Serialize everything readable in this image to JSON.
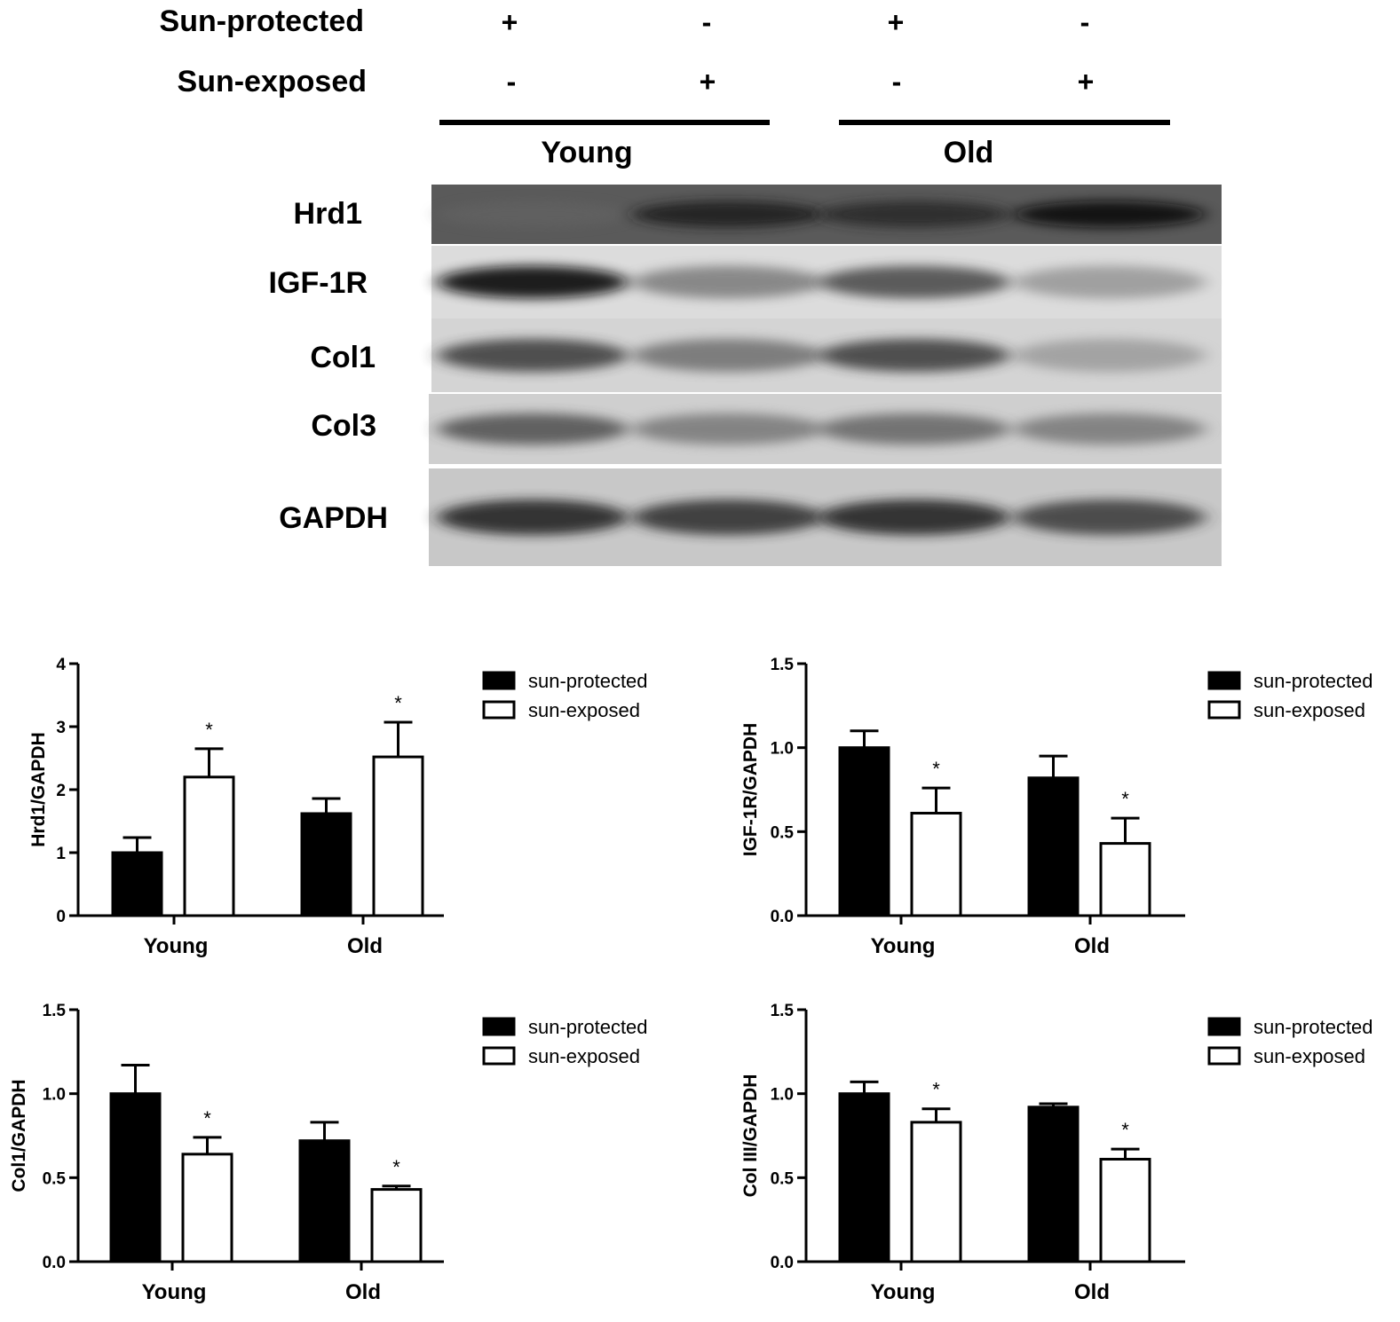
{
  "blot": {
    "conditions": [
      {
        "label": "Sun-protected",
        "signs": [
          "+",
          "-",
          "+",
          "-"
        ]
      },
      {
        "label": "Sun-exposed",
        "signs": [
          "-",
          "+",
          "-",
          "+"
        ]
      }
    ],
    "groups": [
      "Young",
      "Old"
    ],
    "bands": [
      {
        "label": "Hrd1",
        "intensity": [
          0.35,
          0.85,
          0.8,
          0.95
        ],
        "background": "#5a5a5a"
      },
      {
        "label": "IGF-1R",
        "intensity": [
          0.95,
          0.45,
          0.7,
          0.3
        ],
        "background": "#dcdcdc"
      },
      {
        "label": "Col1",
        "intensity": [
          0.75,
          0.5,
          0.75,
          0.25
        ],
        "background": "#d4d4d4"
      },
      {
        "label": "Col3",
        "intensity": [
          0.65,
          0.45,
          0.55,
          0.45
        ],
        "background": "#cfcfcf"
      },
      {
        "label": "GAPDH",
        "intensity": [
          0.85,
          0.8,
          0.85,
          0.75
        ],
        "background": "#c8c8c8"
      }
    ]
  },
  "colors": {
    "protected": "#000000",
    "exposed": "#ffffff",
    "ink": "#000000"
  },
  "chart_data": [
    {
      "type": "bar",
      "ylabel": "Hrd1/GAPDH",
      "categories": [
        "Young",
        "Old"
      ],
      "ylim": [
        0,
        4
      ],
      "yticks": [
        "0",
        "1",
        "2",
        "3",
        "4"
      ],
      "legend_position": "top-right",
      "series": [
        {
          "name": "sun-protected",
          "values": [
            1.0,
            1.62
          ],
          "errors": [
            0.24,
            0.24
          ],
          "significance": [
            "",
            ""
          ]
        },
        {
          "name": "sun-exposed",
          "values": [
            2.2,
            2.52
          ],
          "errors": [
            0.45,
            0.55
          ],
          "significance": [
            "*",
            "*"
          ]
        }
      ]
    },
    {
      "type": "bar",
      "ylabel": "IGF-1R/GAPDH",
      "categories": [
        "Young",
        "Old"
      ],
      "ylim": [
        0,
        1.5
      ],
      "yticks": [
        "0.0",
        "0.5",
        "1.0",
        "1.5"
      ],
      "legend_position": "top-right",
      "series": [
        {
          "name": "sun-protected",
          "values": [
            1.0,
            0.82
          ],
          "errors": [
            0.1,
            0.13
          ],
          "significance": [
            "",
            ""
          ]
        },
        {
          "name": "sun-exposed",
          "values": [
            0.61,
            0.43
          ],
          "errors": [
            0.15,
            0.15
          ],
          "significance": [
            "*",
            "*"
          ]
        }
      ]
    },
    {
      "type": "bar",
      "ylabel": "Col1/GAPDH",
      "categories": [
        "Young",
        "Old"
      ],
      "ylim": [
        0,
        1.5
      ],
      "yticks": [
        "0.0",
        "0.5",
        "1.0",
        "1.5"
      ],
      "legend_position": "top-right",
      "series": [
        {
          "name": "sun-protected",
          "values": [
            1.0,
            0.72
          ],
          "errors": [
            0.17,
            0.11
          ],
          "significance": [
            "",
            ""
          ]
        },
        {
          "name": "sun-exposed",
          "values": [
            0.64,
            0.43
          ],
          "errors": [
            0.1,
            0.02
          ],
          "significance": [
            "*",
            "*"
          ]
        }
      ]
    },
    {
      "type": "bar",
      "ylabel": "Col III/GAPDH",
      "categories": [
        "Young",
        "Old"
      ],
      "ylim": [
        0,
        1.5
      ],
      "yticks": [
        "0.0",
        "0.5",
        "1.0",
        "1.5"
      ],
      "legend_position": "top-right",
      "series": [
        {
          "name": "sun-protected",
          "values": [
            1.0,
            0.92
          ],
          "errors": [
            0.07,
            0.02
          ],
          "significance": [
            "",
            ""
          ]
        },
        {
          "name": "sun-exposed",
          "values": [
            0.83,
            0.61
          ],
          "errors": [
            0.08,
            0.06
          ],
          "significance": [
            "*",
            "*"
          ]
        }
      ]
    }
  ]
}
